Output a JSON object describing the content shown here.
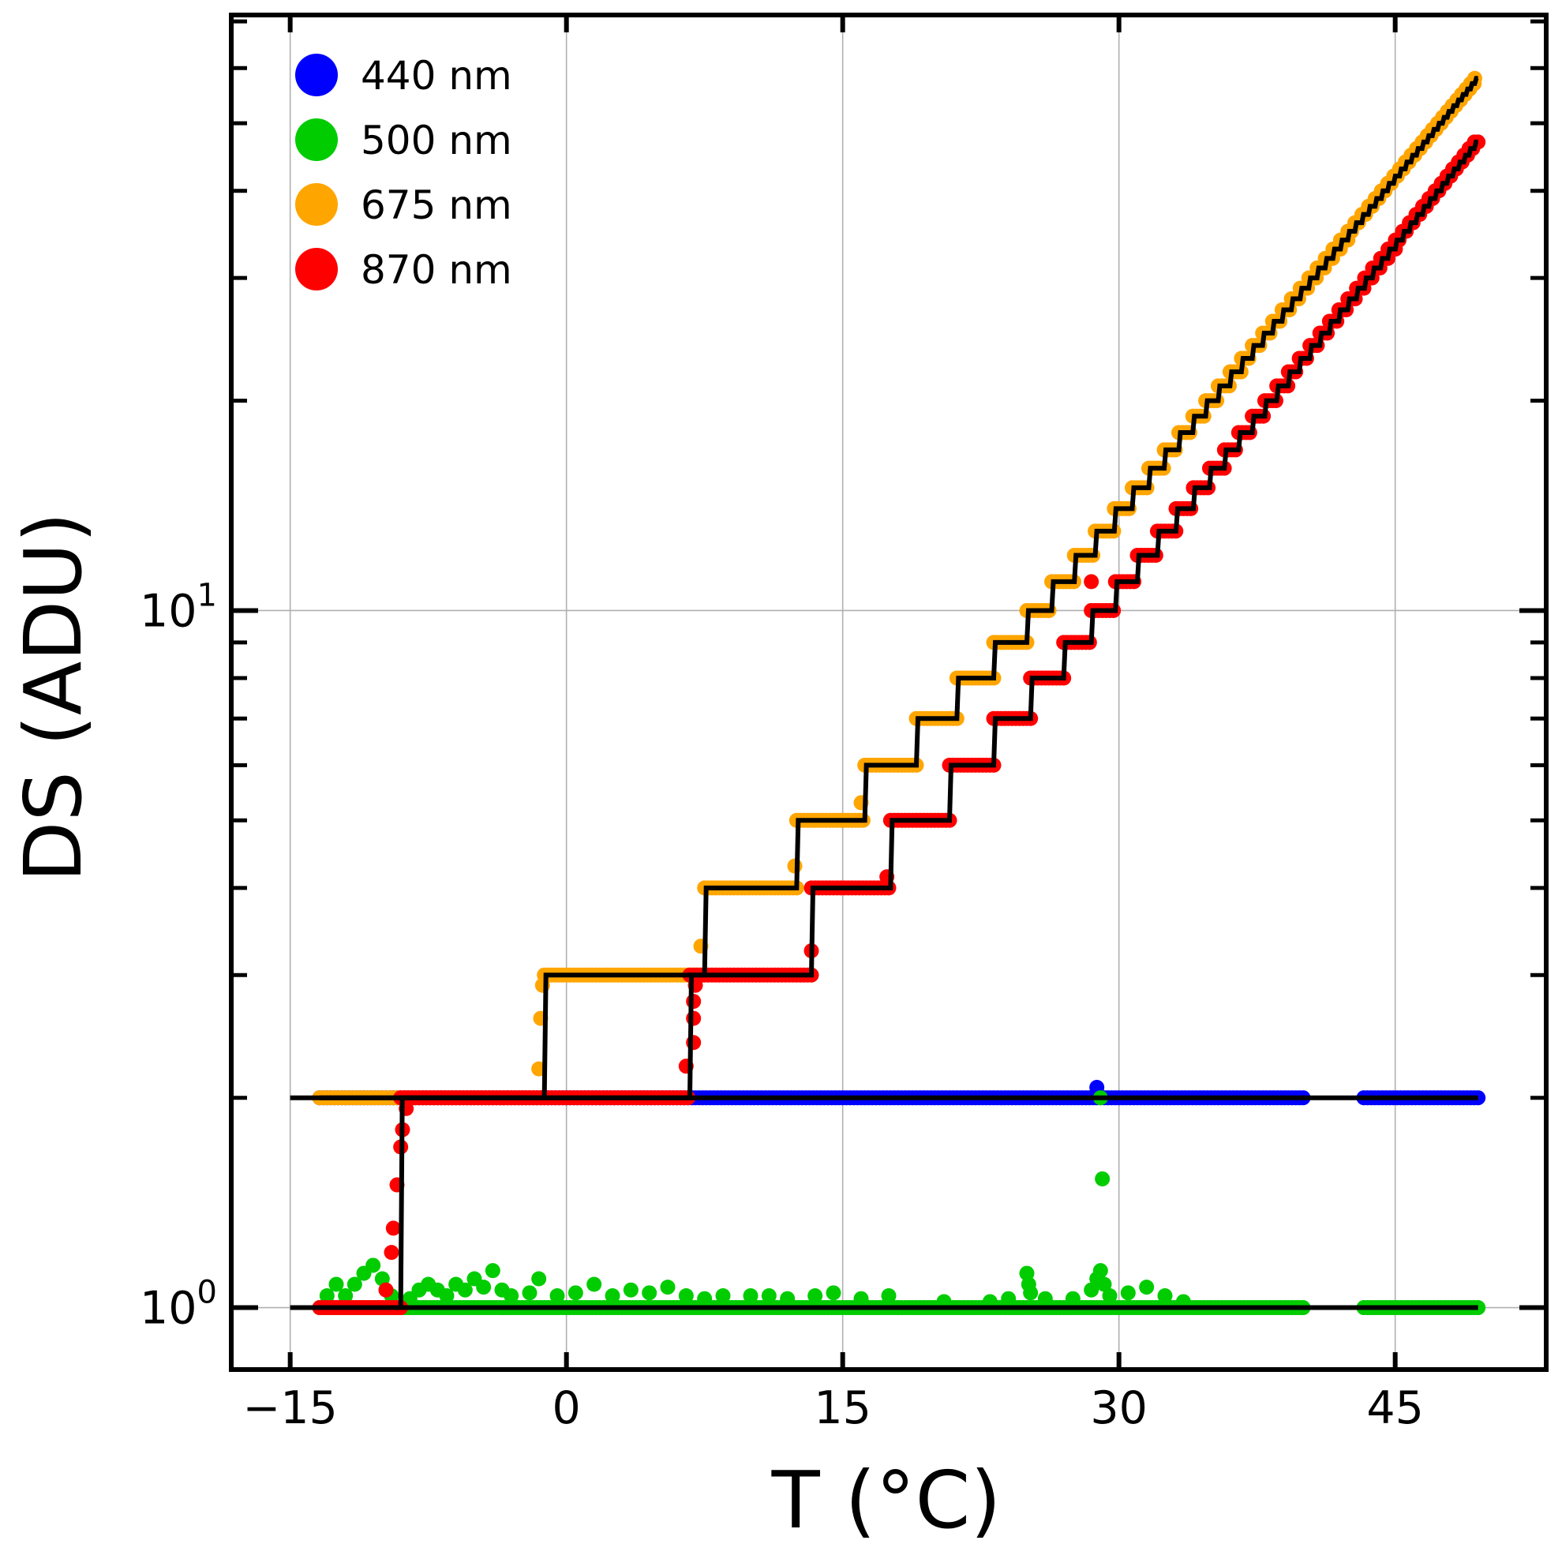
{
  "chart_data": {
    "type": "scatter",
    "title": "",
    "xlabel": "T (°C)",
    "ylabel": "DS (ADU)",
    "xlim": [
      -18.2,
      53.2
    ],
    "ylim": [
      0.815,
      71.5
    ],
    "yscale": "log",
    "grid": true,
    "legend_placement": "top-left",
    "x_ticks": [
      {
        "value": -15,
        "label": "−15"
      },
      {
        "value": 0,
        "label": "0"
      },
      {
        "value": 15,
        "label": "15"
      },
      {
        "value": 30,
        "label": "30"
      },
      {
        "value": 45,
        "label": "45"
      }
    ],
    "y_ticks": [
      {
        "value": 1,
        "base": "10",
        "exp": "0"
      },
      {
        "value": 10,
        "base": "10",
        "exp": "1"
      }
    ],
    "series": [
      {
        "name": "440 nm",
        "color": "#0000ff",
        "data_segments": [
          {
            "T_start": -13.4,
            "T_end": 40.0,
            "value": 2
          },
          {
            "T_start": 43.3,
            "T_end": 49.5,
            "value": 2
          }
        ],
        "extra_points": [
          [
            28.8,
            2.07
          ]
        ],
        "fit": {
          "T_start": -15,
          "T_end": 49.5,
          "start_value": 2,
          "step_T": []
        }
      },
      {
        "name": "500 nm",
        "color": "#00cc00",
        "data_segments": [
          {
            "T_start": -13.4,
            "T_end": 40.0,
            "value": 1
          },
          {
            "T_start": 43.3,
            "T_end": 49.5,
            "value": 1
          }
        ],
        "extra_points": [
          [
            -13,
            1.04
          ],
          [
            -12.5,
            1.08
          ],
          [
            -12,
            1.04
          ],
          [
            -11.5,
            1.08
          ],
          [
            -11,
            1.12
          ],
          [
            -10.5,
            1.15
          ],
          [
            -10,
            1.1
          ],
          [
            -9.5,
            1.04
          ],
          [
            -8.5,
            1.03
          ],
          [
            -8,
            1.06
          ],
          [
            -7.5,
            1.08
          ],
          [
            -7,
            1.06
          ],
          [
            -6.5,
            1.04
          ],
          [
            -6,
            1.08
          ],
          [
            -5.5,
            1.06
          ],
          [
            -5,
            1.1
          ],
          [
            -4.5,
            1.07
          ],
          [
            -4,
            1.13
          ],
          [
            -3.5,
            1.06
          ],
          [
            -3,
            1.04
          ],
          [
            -2,
            1.05
          ],
          [
            -1.5,
            1.1
          ],
          [
            -0.5,
            1.04
          ],
          [
            0.5,
            1.05
          ],
          [
            1.5,
            1.08
          ],
          [
            2.5,
            1.04
          ],
          [
            3.5,
            1.06
          ],
          [
            4.5,
            1.05
          ],
          [
            5.5,
            1.07
          ],
          [
            6.5,
            1.04
          ],
          [
            7.5,
            1.03
          ],
          [
            8.5,
            1.04
          ],
          [
            10,
            1.04
          ],
          [
            11,
            1.04
          ],
          [
            12,
            1.03
          ],
          [
            13.5,
            1.04
          ],
          [
            14.5,
            1.05
          ],
          [
            16,
            1.03
          ],
          [
            17.5,
            1.04
          ],
          [
            20.5,
            1.02
          ],
          [
            23,
            1.02
          ],
          [
            24,
            1.03
          ],
          [
            25,
            1.12
          ],
          [
            25.1,
            1.08
          ],
          [
            25.2,
            1.05
          ],
          [
            26,
            1.03
          ],
          [
            27.5,
            1.03
          ],
          [
            28.5,
            1.06
          ],
          [
            28.8,
            1.1
          ],
          [
            29,
            1.13
          ],
          [
            29.2,
            1.08
          ],
          [
            29.5,
            1.04
          ],
          [
            30.5,
            1.05
          ],
          [
            31.5,
            1.07
          ],
          [
            32.5,
            1.04
          ],
          [
            33.5,
            1.02
          ],
          [
            29.1,
            1.53
          ],
          [
            29.0,
            2.0
          ]
        ],
        "fit": {
          "T_start": -15,
          "T_end": 49.5,
          "start_value": 1,
          "step_T": []
        }
      },
      {
        "name": "675 nm",
        "color": "#ffa500",
        "extra_points": [
          [
            -1.5,
            2.2
          ],
          [
            -1.4,
            2.6
          ],
          [
            -1.3,
            2.9
          ],
          [
            7.3,
            3.3
          ],
          [
            12.4,
            4.3
          ],
          [
            16.0,
            5.3
          ]
        ],
        "fit": {
          "T_start": -13.4,
          "T_end": 49.5,
          "start_value": 2,
          "step_T": [
            -1.2,
            7.5,
            12.5,
            16.2,
            19.0,
            21.2,
            23.2,
            25.0,
            26.35,
            27.58,
            28.71,
            29.75,
            30.72,
            31.62,
            32.46,
            33.25,
            34.01,
            34.71,
            35.39,
            36.03,
            36.65,
            37.24,
            37.8,
            38.34,
            38.86,
            39.36,
            39.84,
            40.31,
            40.76,
            41.2,
            41.62,
            42.03,
            42.43,
            42.81,
            43.19,
            43.55,
            43.91,
            44.25,
            44.59,
            44.92,
            45.24,
            45.55,
            45.86,
            46.16,
            46.46,
            46.74,
            47.02,
            47.3,
            47.57,
            47.83,
            48.09,
            48.35,
            48.6,
            48.85,
            49.09,
            49.32
          ]
        }
      },
      {
        "name": "870 nm",
        "color": "#ff0000",
        "extra_points": [
          [
            -9.8,
            1.06
          ],
          [
            -9.5,
            1.2
          ],
          [
            -9.4,
            1.3
          ],
          [
            -9.2,
            1.5
          ],
          [
            -9.0,
            1.7
          ],
          [
            -8.9,
            1.8
          ],
          [
            -8.7,
            1.93
          ],
          [
            6.5,
            2.22
          ],
          [
            6.9,
            2.4
          ],
          [
            6.9,
            2.6
          ],
          [
            6.9,
            2.75
          ],
          [
            7.0,
            2.9
          ],
          [
            13.3,
            3.25
          ],
          [
            17.4,
            4.15
          ],
          [
            28.5,
            11.0
          ]
        ],
        "fit": {
          "T_start": -13.4,
          "T_end": 49.5,
          "start_value": 1,
          "step_T": [
            -9.0,
            6.7,
            13.3,
            17.6,
            20.8,
            23.2,
            25.2,
            27.0,
            28.5,
            29.81,
            31.0,
            32.09,
            33.1,
            34.04,
            34.92,
            35.73,
            36.5,
            37.24,
            37.92,
            38.57,
            39.2,
            39.79,
            40.37,
            40.91,
            41.43,
            41.94,
            42.43,
            42.9,
            43.34,
            43.77,
            44.21,
            44.61,
            45.01,
            45.4,
            45.77,
            46.13,
            46.49,
            46.83,
            47.17,
            47.5,
            47.81,
            48.12,
            48.43,
            48.73,
            49.01,
            49.3
          ]
        }
      }
    ]
  }
}
